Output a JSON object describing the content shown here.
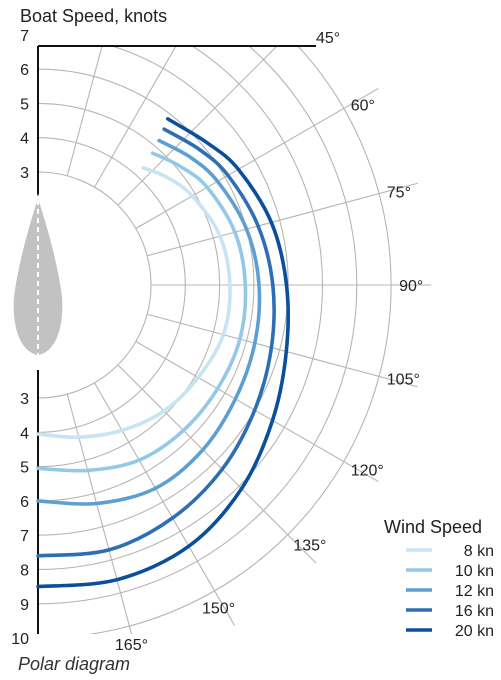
{
  "chart_data": {
    "type": "line",
    "subtype": "polar",
    "title": "Polar diagram",
    "ylabel": "Boat Speed, knots",
    "radial_ticks_upper": [
      "7",
      "6",
      "5",
      "4",
      "3"
    ],
    "radial_ticks_lower": [
      "3",
      "4",
      "5",
      "6",
      "7",
      "8",
      "9",
      "10"
    ],
    "radial_tick_values": [
      3,
      4,
      5,
      6,
      7,
      8,
      9,
      10
    ],
    "angle_ticks": [
      {
        "angle": 45,
        "label": "45°"
      },
      {
        "angle": 60,
        "label": "60°"
      },
      {
        "angle": 75,
        "label": "75°"
      },
      {
        "angle": 90,
        "label": "90°"
      },
      {
        "angle": 105,
        "label": "105°"
      },
      {
        "angle": 120,
        "label": "120°"
      },
      {
        "angle": 135,
        "label": "135°"
      },
      {
        "angle": 150,
        "label": "150°"
      },
      {
        "angle": 165,
        "label": "165°"
      }
    ],
    "legend_title": "Wind Speed",
    "legend_placement": "bottom-right",
    "grid": true,
    "series": [
      {
        "name": "8 kn",
        "color": "#c6e4f3",
        "points": [
          [
            42,
            4.3
          ],
          [
            50,
            4.6
          ],
          [
            60,
            4.9
          ],
          [
            75,
            5.2
          ],
          [
            90,
            5.3
          ],
          [
            105,
            5.3
          ],
          [
            120,
            5.1
          ],
          [
            135,
            4.9
          ],
          [
            150,
            4.6
          ],
          [
            165,
            4.3
          ],
          [
            180,
            4.05
          ]
        ]
      },
      {
        "name": "10 kn",
        "color": "#93c8e8",
        "points": [
          [
            41,
            4.8
          ],
          [
            50,
            5.1
          ],
          [
            60,
            5.4
          ],
          [
            75,
            5.65
          ],
          [
            90,
            5.75
          ],
          [
            105,
            5.8
          ],
          [
            120,
            5.75
          ],
          [
            135,
            5.7
          ],
          [
            150,
            5.6
          ],
          [
            165,
            5.3
          ],
          [
            180,
            5.05
          ]
        ]
      },
      {
        "name": "12 kn",
        "color": "#5e9fd2",
        "points": [
          [
            40,
            5.2
          ],
          [
            50,
            5.5
          ],
          [
            60,
            5.75
          ],
          [
            75,
            6.0
          ],
          [
            90,
            6.15
          ],
          [
            105,
            6.25
          ],
          [
            120,
            6.35
          ],
          [
            135,
            6.5
          ],
          [
            150,
            6.55
          ],
          [
            165,
            6.3
          ],
          [
            180,
            6.0
          ]
        ]
      },
      {
        "name": "16 kn",
        "color": "#2e6eb5",
        "points": [
          [
            39,
            5.55
          ],
          [
            50,
            5.85
          ],
          [
            60,
            6.1
          ],
          [
            75,
            6.35
          ],
          [
            90,
            6.55
          ],
          [
            105,
            6.75
          ],
          [
            120,
            7.0
          ],
          [
            135,
            7.3
          ],
          [
            150,
            7.55
          ],
          [
            165,
            7.7
          ],
          [
            180,
            7.6
          ]
        ]
      },
      {
        "name": "20 kn",
        "color": "#0b4f9c",
        "points": [
          [
            38,
            5.85
          ],
          [
            50,
            6.15
          ],
          [
            60,
            6.45
          ],
          [
            75,
            6.75
          ],
          [
            90,
            6.95
          ],
          [
            105,
            7.2
          ],
          [
            120,
            7.6
          ],
          [
            135,
            8.1
          ],
          [
            150,
            8.5
          ],
          [
            165,
            8.6
          ],
          [
            180,
            8.5
          ]
        ]
      }
    ]
  }
}
